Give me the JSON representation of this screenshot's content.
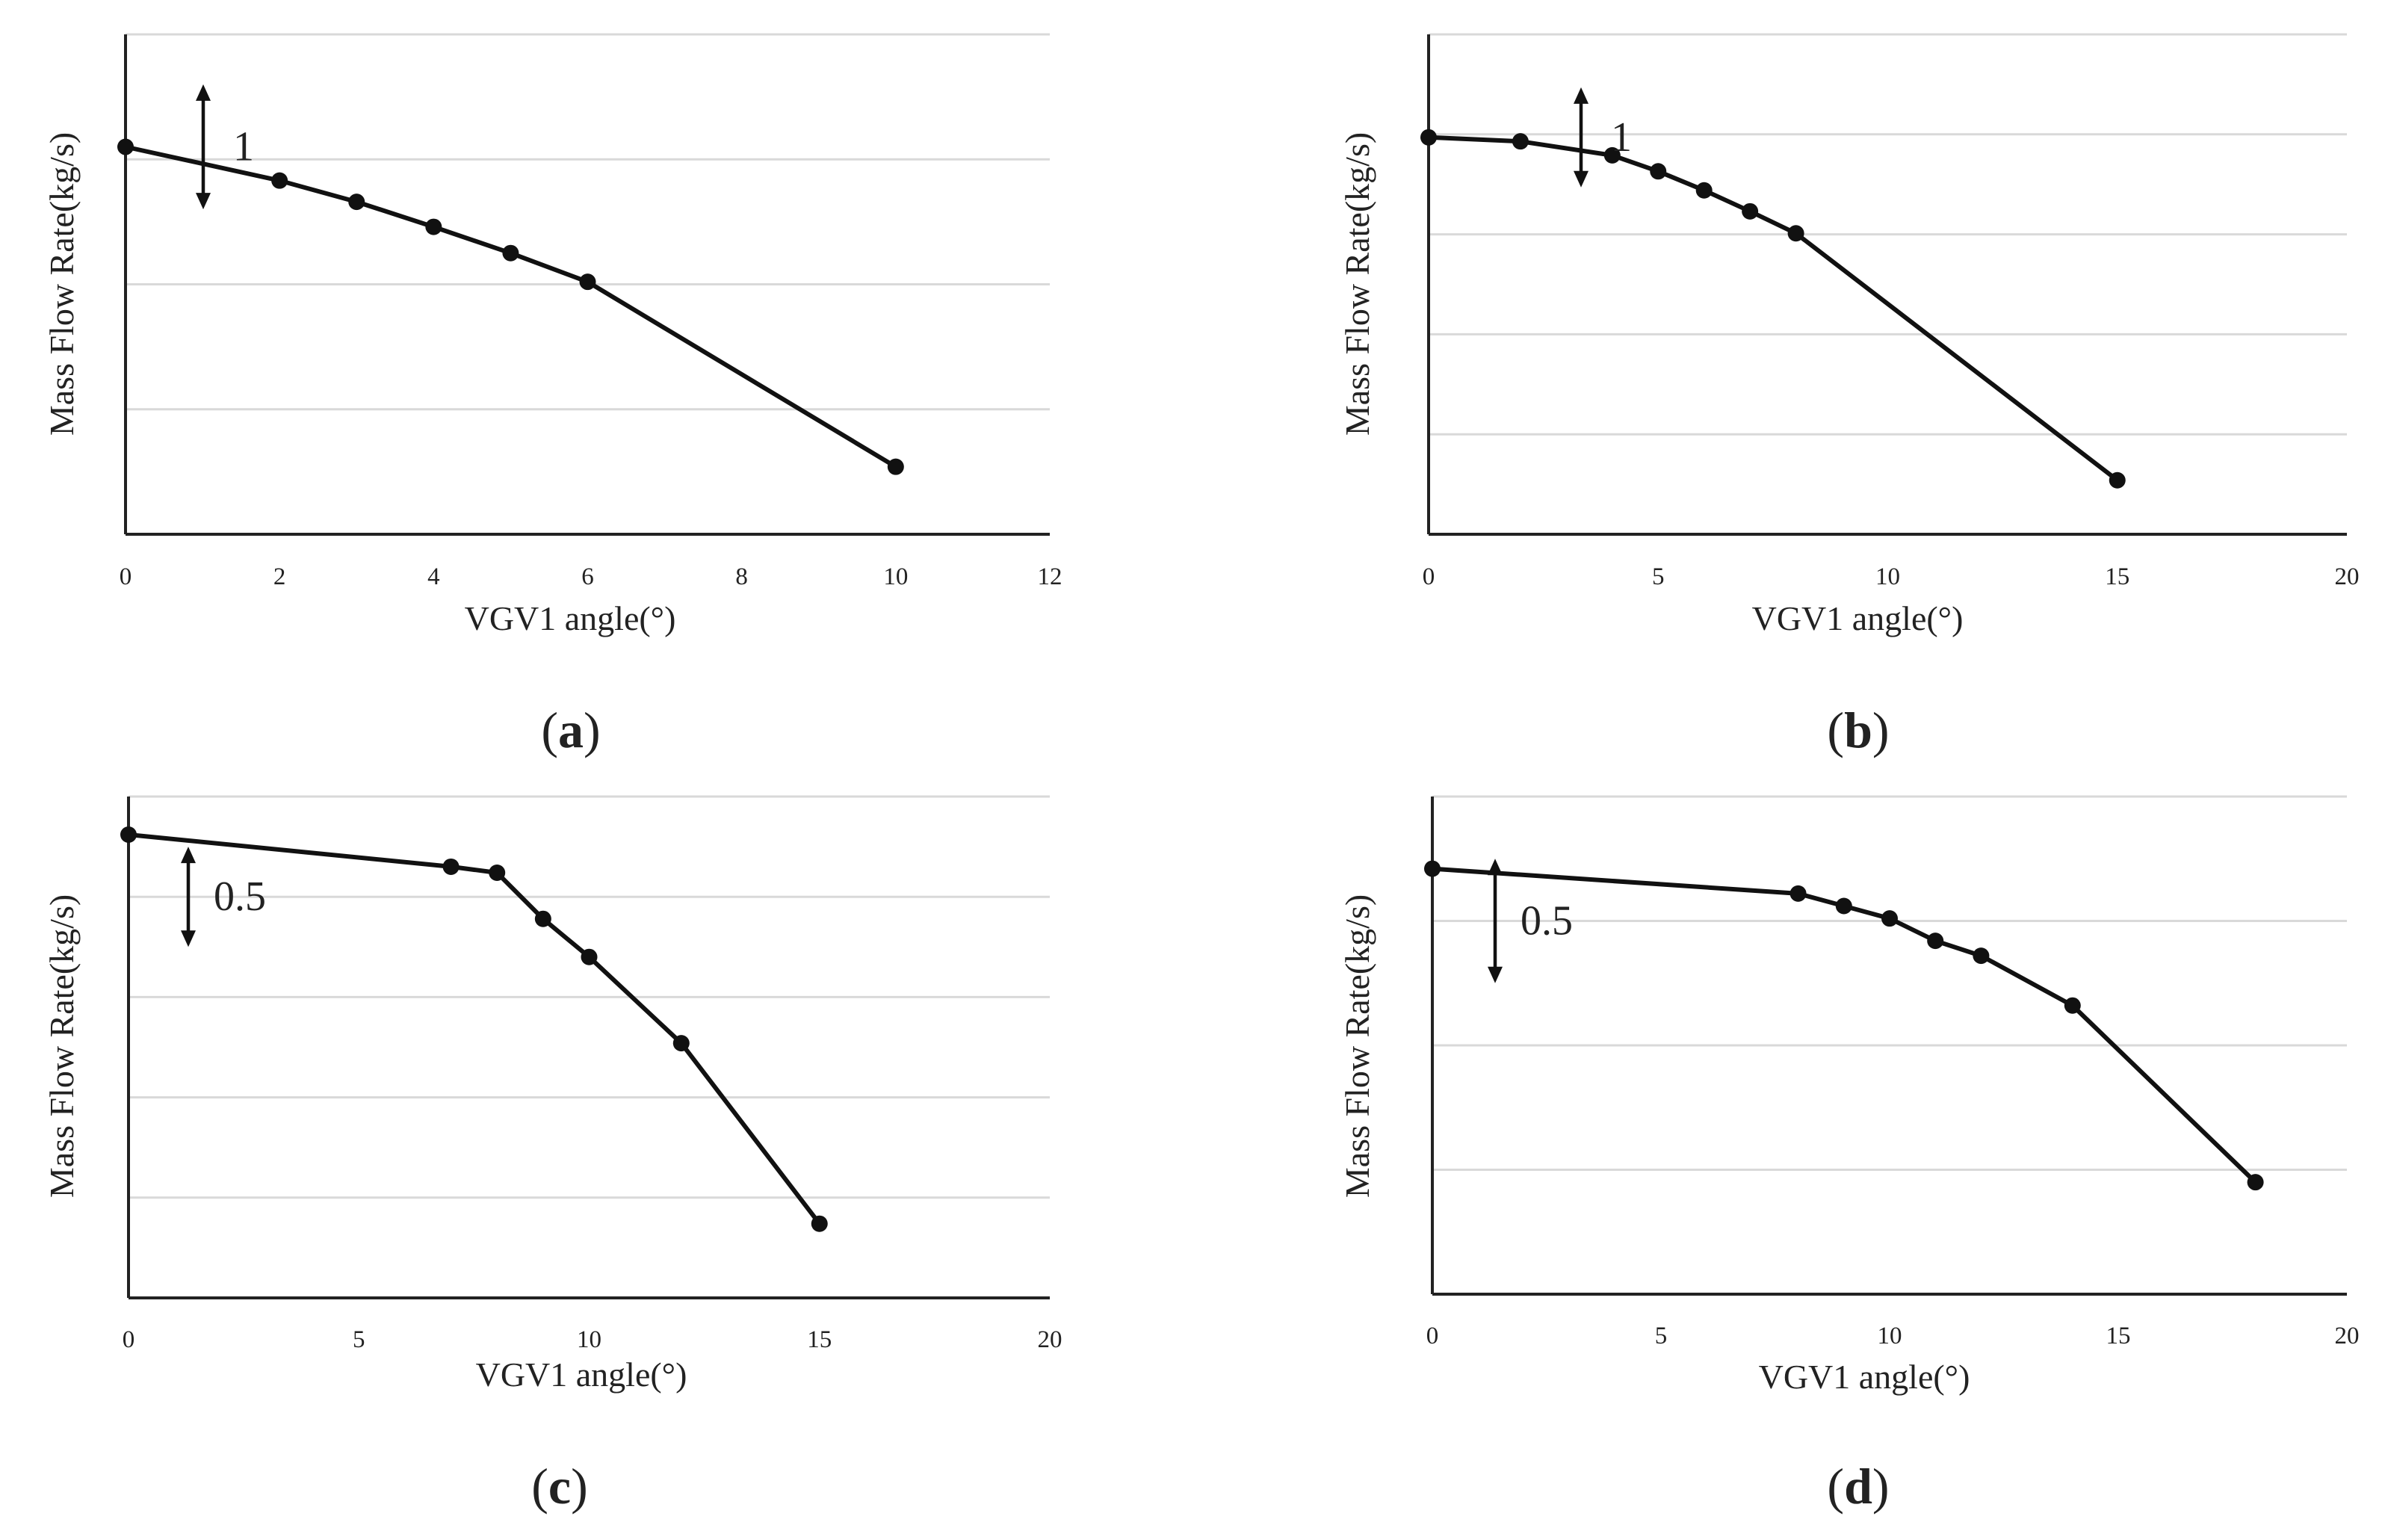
{
  "chart_data": [
    {
      "type": "line",
      "caption_letter": "a",
      "xlabel": "VGV1 angle(°)",
      "ylabel": "Mass Flow Rate(kg/s)",
      "xlim": [
        0,
        12
      ],
      "x_ticks": [
        "0",
        "2",
        "4",
        "6",
        "8",
        "10",
        "12"
      ],
      "x": [
        0,
        2,
        3,
        4,
        5,
        6,
        10
      ],
      "y": [
        3.1,
        2.83,
        2.66,
        2.46,
        2.25,
        2.02,
        0.54
      ],
      "ylim": [
        0,
        4
      ],
      "annotation": "1"
    },
    {
      "type": "line",
      "caption_letter": "b",
      "xlabel": "VGV1 angle(°)",
      "ylabel": "Mass Flow Rate(kg/s)",
      "xlim": [
        0,
        20
      ],
      "x_ticks": [
        "0",
        "5",
        "10",
        "15",
        "20"
      ],
      "x": [
        0,
        2,
        4,
        5,
        6,
        7,
        8,
        15
      ],
      "y": [
        3.97,
        3.93,
        3.79,
        3.63,
        3.44,
        3.23,
        3.01,
        0.54
      ],
      "ylim": [
        0,
        5
      ],
      "annotation": "1"
    },
    {
      "type": "line",
      "caption_letter": "c",
      "xlabel": "VGV1 angle(°)",
      "ylabel": "Mass Flow Rate(kg/s)",
      "xlim": [
        0,
        20
      ],
      "x_ticks": [
        "0",
        "5",
        "10",
        "15",
        "20"
      ],
      "x": [
        0,
        7,
        8,
        9,
        10,
        12,
        15
      ],
      "y": [
        2.31,
        2.15,
        2.12,
        1.89,
        1.7,
        1.27,
        0.37
      ],
      "ylim": [
        0,
        2.5
      ],
      "annotation": "0.5"
    },
    {
      "type": "line",
      "caption_letter": "d",
      "xlabel": "VGV1 angle(°)",
      "ylabel": "Mass Flow Rate(kg/s)",
      "xlim": [
        0,
        20
      ],
      "x_ticks": [
        "0",
        "5",
        "10",
        "15",
        "20"
      ],
      "x": [
        0,
        8,
        9,
        10,
        11,
        12,
        14,
        18
      ],
      "y": [
        1.71,
        1.61,
        1.56,
        1.51,
        1.42,
        1.36,
        1.16,
        0.45
      ],
      "ylim": [
        0,
        2
      ],
      "annotation": "0.5"
    }
  ]
}
